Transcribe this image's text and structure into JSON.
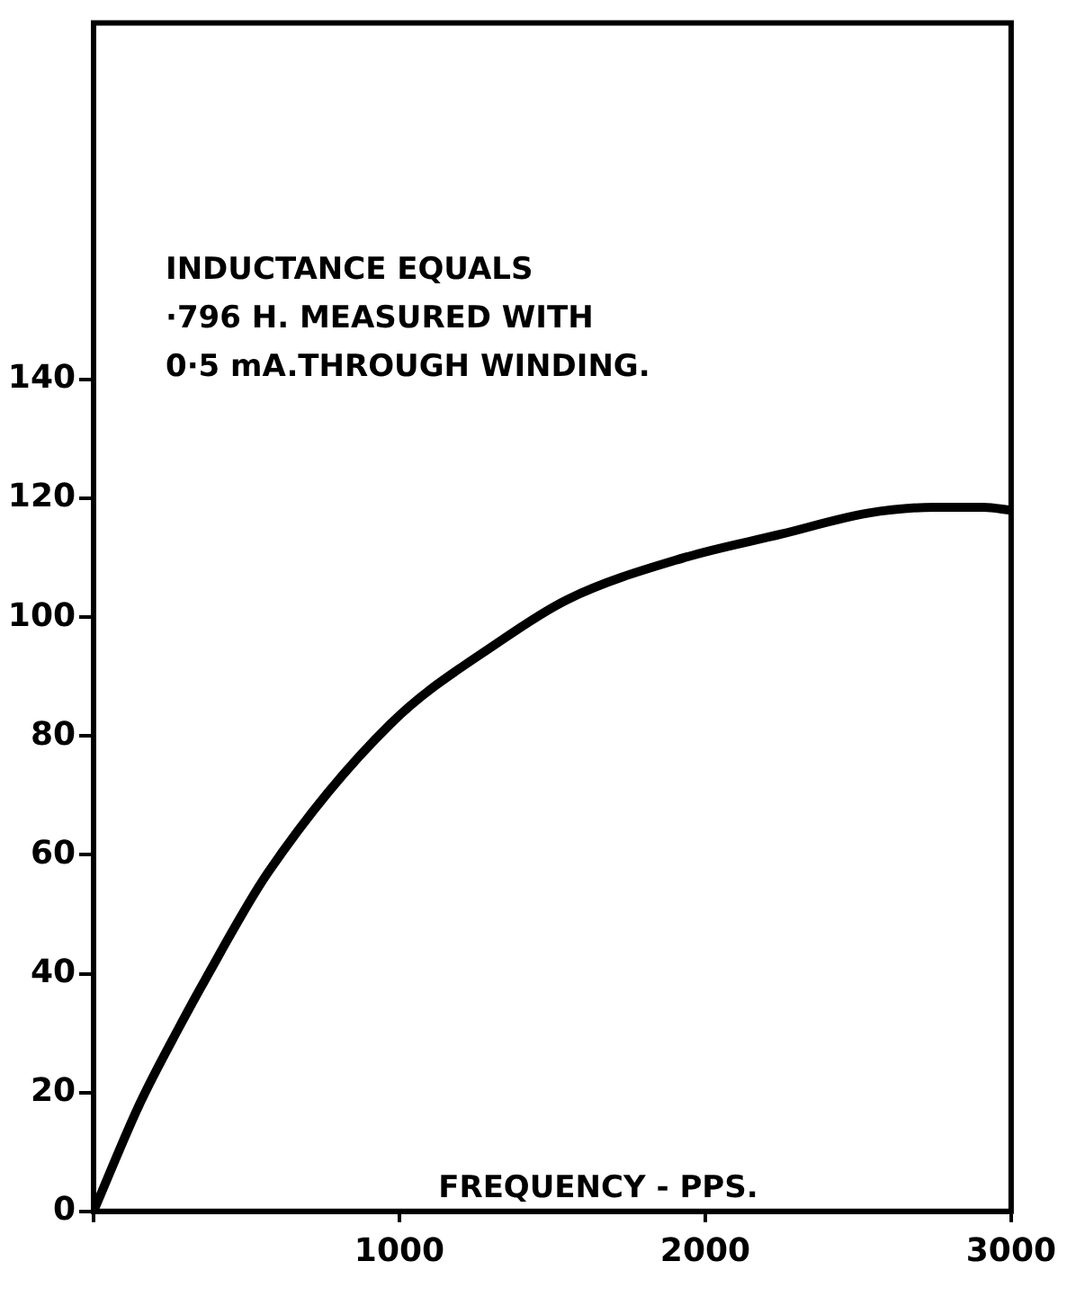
{
  "chart_data": {
    "type": "line",
    "xlabel": "FREQUENCY - PPS.",
    "annotations": [
      "INDUCTANCE EQUALS\n·796 H. MEASURED WITH\n0·5 mA.THROUGH WINDING."
    ],
    "x": [
      0,
      150,
      280,
      365,
      570,
      970,
      1330,
      1550,
      1930,
      2250,
      2530,
      2750,
      2910,
      3000
    ],
    "series": [
      {
        "color": "#000000",
        "values": [
          0,
          18,
          31,
          39,
          57,
          82,
          96,
          103,
          110,
          114,
          117.5,
          118.5,
          118.5,
          118
        ]
      }
    ],
    "xlim": [
      0,
      3000
    ],
    "xticks": [
      {
        "value": 0,
        "label": null
      },
      1000,
      2000,
      3000
    ],
    "ylim": [
      0,
      200
    ],
    "yticks": [
      0,
      20,
      40,
      60,
      80,
      100,
      120,
      140
    ],
    "grid": false,
    "legend": false,
    "marker": "none",
    "line_style": "solid"
  }
}
